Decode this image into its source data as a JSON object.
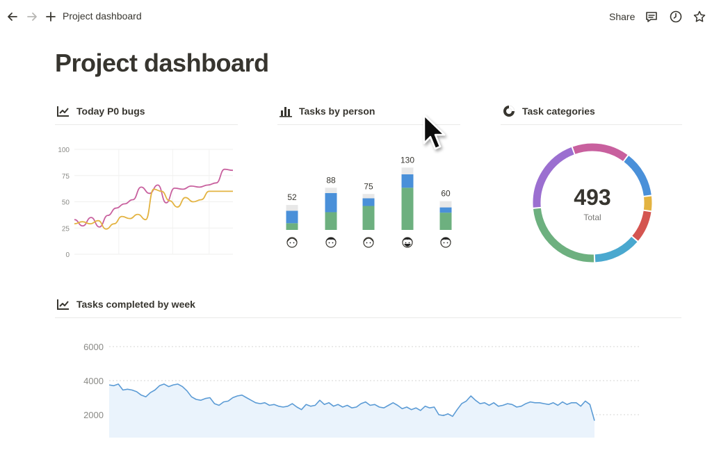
{
  "topbar": {
    "back_icon": "arrow-left-icon",
    "forward_icon": "arrow-right-icon",
    "new_icon": "plus-icon",
    "breadcrumb": "Project dashboard",
    "share_label": "Share",
    "comments_icon": "comment-icon",
    "history_icon": "clock-icon",
    "favorite_icon": "star-icon"
  },
  "page": {
    "title": "Project dashboard"
  },
  "sections": {
    "p0_bugs": {
      "title": "Today P0 bugs",
      "icon": "line-chart-icon"
    },
    "tasks_by_person": {
      "title": "Tasks by person",
      "icon": "bar-chart-icon"
    },
    "task_categories": {
      "title": "Task categories",
      "icon": "donut-chart-icon"
    },
    "tasks_completed": {
      "title": "Tasks completed by week",
      "icon": "line-chart-icon"
    }
  },
  "colors": {
    "pink": "#c8609e",
    "yellow": "#e3b341",
    "blue": "#4a90d9",
    "green": "#6db07f",
    "gray": "#e8e8e8",
    "purple": "#9b6fd0",
    "red": "#d45550",
    "teal": "#4aa8cf",
    "week_line": "#5b9bd5"
  },
  "chart_data": [
    {
      "type": "line",
      "yticks": [
        "100",
        "75",
        "50",
        "25",
        "0"
      ],
      "ylim": [
        0,
        100
      ],
      "grid": true,
      "x": [
        0,
        1,
        2,
        3,
        4,
        5,
        6,
        7,
        8,
        9,
        10,
        11,
        12,
        13,
        14,
        15,
        16,
        17,
        18,
        19,
        20,
        21,
        22,
        23,
        24,
        25,
        26,
        27,
        28,
        29,
        30
      ],
      "series": [
        {
          "color": "pink",
          "values": [
            33,
            27,
            35,
            26,
            37,
            44,
            48,
            52,
            64,
            58,
            66,
            49,
            63,
            62,
            65,
            64,
            66,
            68,
            81,
            80,
            80,
            80,
            80,
            80,
            80,
            80,
            80,
            80,
            80,
            80,
            80
          ]
        },
        {
          "color": "yellow",
          "values": [
            29,
            31,
            29,
            32,
            24,
            29,
            36,
            34,
            38,
            33,
            62,
            60,
            51,
            45,
            54,
            50,
            52,
            60,
            60,
            60,
            60,
            60,
            60,
            60,
            60,
            60,
            60,
            60,
            60,
            60,
            60
          ]
        }
      ]
    },
    {
      "type": "bar",
      "categories": [
        "person-1",
        "person-2",
        "person-3",
        "person-4",
        "person-5"
      ],
      "totals": [
        52,
        88,
        75,
        130,
        60
      ],
      "series": [
        {
          "color": "green",
          "values": [
            14,
            37,
            50,
            88,
            36
          ]
        },
        {
          "color": "blue",
          "values": [
            26,
            40,
            16,
            28,
            11
          ]
        },
        {
          "color": "gray",
          "values": [
            12,
            11,
            9,
            14,
            13
          ]
        }
      ]
    },
    {
      "type": "pie",
      "center_value": "493",
      "center_label": "Total",
      "slices": [
        {
          "color": "pink",
          "value": 78
        },
        {
          "color": "blue",
          "value": 63
        },
        {
          "color": "yellow",
          "value": 21
        },
        {
          "color": "red",
          "value": 44
        },
        {
          "color": "teal",
          "value": 65
        },
        {
          "color": "green",
          "value": 119
        },
        {
          "color": "purple",
          "value": 103
        }
      ]
    },
    {
      "type": "area",
      "yticks": [
        "6000",
        "4000",
        "2000"
      ],
      "ylim": [
        2000,
        6000
      ],
      "grid": true,
      "values": [
        3750,
        3700,
        3800,
        3450,
        3500,
        3450,
        3350,
        3150,
        3050,
        3300,
        3450,
        3700,
        3800,
        3650,
        3750,
        3800,
        3650,
        3400,
        3050,
        2900,
        2850,
        2950,
        3000,
        2650,
        2550,
        2750,
        2800,
        3000,
        3100,
        3150,
        3000,
        2850,
        2700,
        2650,
        2700,
        2550,
        2600,
        2500,
        2450,
        2500,
        2650,
        2450,
        2300,
        2600,
        2500,
        2550,
        2850,
        2600,
        2700,
        2500,
        2600,
        2450,
        2550,
        2400,
        2450,
        2650,
        2750,
        2550,
        2600,
        2450,
        2400,
        2550,
        2700,
        2550,
        2350,
        2450,
        2300,
        2400,
        2250,
        2500,
        2400,
        2450,
        2000,
        1950,
        2050,
        1900,
        2300,
        2650,
        2800,
        3100,
        2850,
        2650,
        2700,
        2550,
        2700,
        2500,
        2550,
        2650,
        2600,
        2450,
        2500,
        2650,
        2750,
        2700,
        2700,
        2650,
        2600,
        2700,
        2550,
        2750,
        2600,
        2700,
        2700,
        2500,
        2800,
        2600,
        1650
      ]
    }
  ]
}
